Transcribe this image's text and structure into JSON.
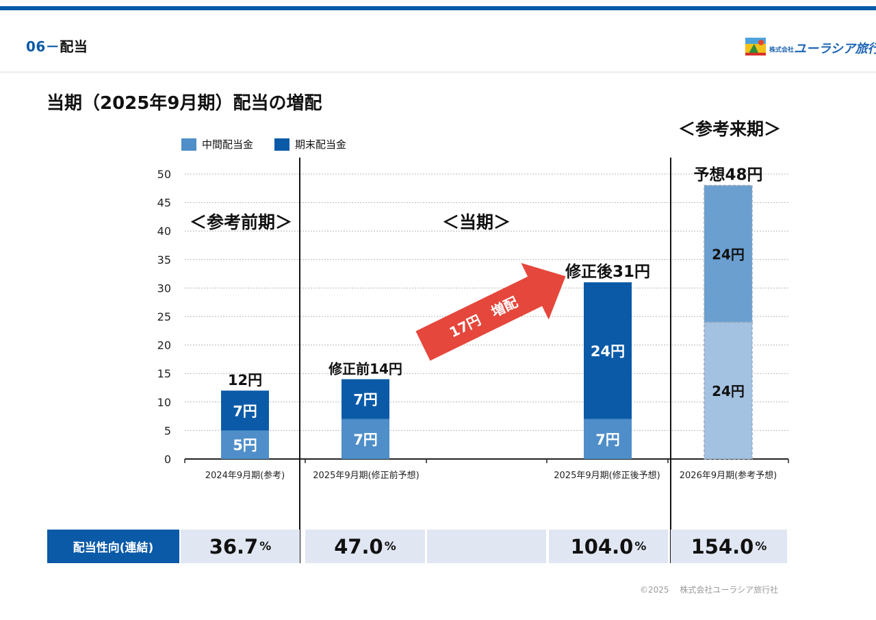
{
  "header": {
    "section_number": "06",
    "section_dash": "－",
    "section_name": "配当",
    "logo_text": "ユーラシア旅行社",
    "logo_prefix": "株式会社"
  },
  "title": "当期（2025年9月期）配当の増配",
  "legend": [
    {
      "label": "中間配当金",
      "color": "#4f8ec9"
    },
    {
      "label": "期末配当金",
      "color": "#0a5aa8"
    }
  ],
  "period_labels": {
    "previous": "＜参考前期＞",
    "current": "＜当期＞",
    "next": "＜参考来期＞"
  },
  "arrow_label": "17円　増配",
  "chart_data": {
    "type": "bar",
    "stacked": true,
    "ylim": [
      0,
      50
    ],
    "yticks": [
      0,
      5,
      10,
      15,
      20,
      25,
      30,
      35,
      40,
      45,
      50
    ],
    "grid": true,
    "categories": [
      "2024年9月期(参考)",
      "2025年9月期(修正前予想)",
      "",
      "2025年9月期(修正後予想)",
      "2026年9月期(参考予想)"
    ],
    "series": [
      {
        "name": "中間配当金",
        "values": [
          5,
          7,
          null,
          7,
          24
        ],
        "labels": [
          "5円",
          "7円",
          "",
          "7円",
          "24円"
        ]
      },
      {
        "name": "期末配当金",
        "values": [
          7,
          7,
          null,
          24,
          24
        ],
        "labels": [
          "7円",
          "7円",
          "",
          "24円",
          "24円"
        ]
      }
    ],
    "totals": [
      "12円",
      "修正前14円",
      "",
      "修正後31円",
      "予想48円"
    ],
    "colors": {
      "interim": "#4f8ec9",
      "final": "#0a5aa8",
      "forecast_interim": "#a3c2e2",
      "forecast_final": "#6b9fd0"
    }
  },
  "payout_ratio": {
    "label": "配当性向(連結)",
    "values": [
      "36.7",
      "47.0",
      "",
      "104.0",
      "154.0"
    ],
    "unit": "%"
  },
  "footer": {
    "copyright": "©2025　 株式会社ユーラシア旅行社"
  }
}
